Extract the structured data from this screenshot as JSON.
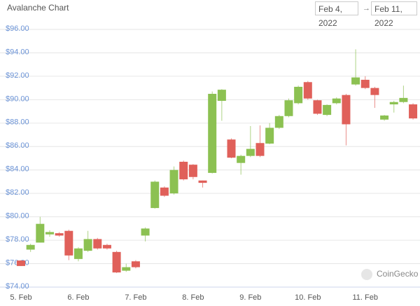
{
  "chart_data": {
    "type": "candlestick",
    "title": "Avalanche Chart",
    "date_range": [
      "Feb 4, 2022",
      "Feb 11, 2022"
    ],
    "date_range_separator": "→",
    "watermark": "CoinGecko",
    "categories": [
      "5. Feb",
      null,
      null,
      null,
      null,
      null,
      "6. Feb",
      null,
      null,
      null,
      null,
      null,
      "7. Feb",
      null,
      null,
      null,
      null,
      null,
      "8. Feb",
      null,
      null,
      null,
      null,
      null,
      "9. Feb",
      null,
      null,
      null,
      null,
      null,
      "10. Feb",
      null,
      null,
      null,
      null,
      null,
      "11. Feb",
      null,
      null,
      null,
      null,
      null
    ],
    "open": [
      76.27,
      77.2,
      77.8,
      78.5,
      78.6,
      78.8,
      76.4,
      77.1,
      78.1,
      77.6,
      77.0,
      75.4,
      76.2,
      78.4,
      80.75,
      82.5,
      82.0,
      84.7,
      84.45,
      83.1,
      83.75,
      89.9,
      86.6,
      84.6,
      85.2,
      86.3,
      86.25,
      87.6,
      88.6,
      89.7,
      91.5,
      89.95,
      88.7,
      89.7,
      90.4,
      91.3,
      91.7,
      91.0,
      88.3,
      89.6,
      89.8,
      89.6
    ],
    "high": [
      76.3,
      77.7,
      80.0,
      78.85,
      78.7,
      78.9,
      77.4,
      78.8,
      78.2,
      77.7,
      77.1,
      76.0,
      76.3,
      79.1,
      83.1,
      82.6,
      84.3,
      84.8,
      84.5,
      83.1,
      90.7,
      90.9,
      86.7,
      85.3,
      87.75,
      87.8,
      88.0,
      88.7,
      90.1,
      91.2,
      91.6,
      90.0,
      89.6,
      90.2,
      90.5,
      94.3,
      92.0,
      91.1,
      88.7,
      89.9,
      91.2,
      89.7
    ],
    "low": [
      75.8,
      77.0,
      77.8,
      78.3,
      78.3,
      76.3,
      76.2,
      77.0,
      77.2,
      77.2,
      75.2,
      75.3,
      75.6,
      77.9,
      80.7,
      81.7,
      81.9,
      83.1,
      83.2,
      82.5,
      83.7,
      88.2,
      85.0,
      83.6,
      85.1,
      85.1,
      86.2,
      87.5,
      88.5,
      89.6,
      90.0,
      88.7,
      88.6,
      89.6,
      86.1,
      91.2,
      90.9,
      89.3,
      88.2,
      88.9,
      89.7,
      88.3
    ],
    "close": [
      75.8,
      77.6,
      79.4,
      78.7,
      78.4,
      76.7,
      77.3,
      78.1,
      77.3,
      77.3,
      75.25,
      75.7,
      75.7,
      79.0,
      83.0,
      81.8,
      84.0,
      83.2,
      83.4,
      82.9,
      90.5,
      90.85,
      85.05,
      85.2,
      85.8,
      85.2,
      87.6,
      88.6,
      89.95,
      91.1,
      90.1,
      88.8,
      89.55,
      90.1,
      87.9,
      91.9,
      91.0,
      90.4,
      88.65,
      89.8,
      90.15,
      88.4
    ],
    "up_color": "#8cc152",
    "down_color": "#e0605a",
    "ylim": [
      74,
      96
    ],
    "yticks": [
      {
        "value": 74,
        "label": "$74.00"
      },
      {
        "value": 76,
        "label": "$76.00"
      },
      {
        "value": 78,
        "label": "$78.00"
      },
      {
        "value": 80,
        "label": "$80.00"
      },
      {
        "value": 82,
        "label": "$82.00"
      },
      {
        "value": 84,
        "label": "$84.00"
      },
      {
        "value": 86,
        "label": "$86.00"
      },
      {
        "value": 88,
        "label": "$88.00"
      },
      {
        "value": 90,
        "label": "$90.00"
      },
      {
        "value": 92,
        "label": "$92.00"
      },
      {
        "value": 94,
        "label": "$94.00"
      },
      {
        "value": 96,
        "label": "$96.00"
      }
    ],
    "grid": true
  }
}
